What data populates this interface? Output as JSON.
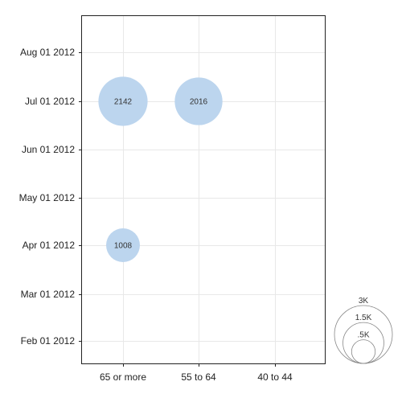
{
  "chart_data": {
    "type": "scatter",
    "encoding": "bubble",
    "title": "",
    "xlabel": "",
    "ylabel": "",
    "x_categories": [
      "65 or more",
      "55 to 64",
      "40 to 44"
    ],
    "y_ticks": [
      "Feb 01 2012",
      "Mar 01 2012",
      "Apr 01 2012",
      "May 01 2012",
      "Jun 01 2012",
      "Jul 01 2012",
      "Aug 01 2012"
    ],
    "points": [
      {
        "x": "65 or more",
        "y": "Jul 01 2012",
        "value": 2142,
        "label": "2142"
      },
      {
        "x": "55 to 64",
        "y": "Jul 01 2012",
        "value": 2016,
        "label": "2016"
      },
      {
        "x": "65 or more",
        "y": "Apr 01 2012",
        "value": 1008,
        "label": "1008"
      }
    ],
    "size_legend": {
      "entries": [
        {
          "label": "3K",
          "value": 3000
        },
        {
          "label": "1.5K",
          "value": 1500
        },
        {
          "label": ".5K",
          "value": 500
        }
      ],
      "placement": "bottom-right"
    },
    "grid": true,
    "bubble_color": "#bcd5ee"
  }
}
